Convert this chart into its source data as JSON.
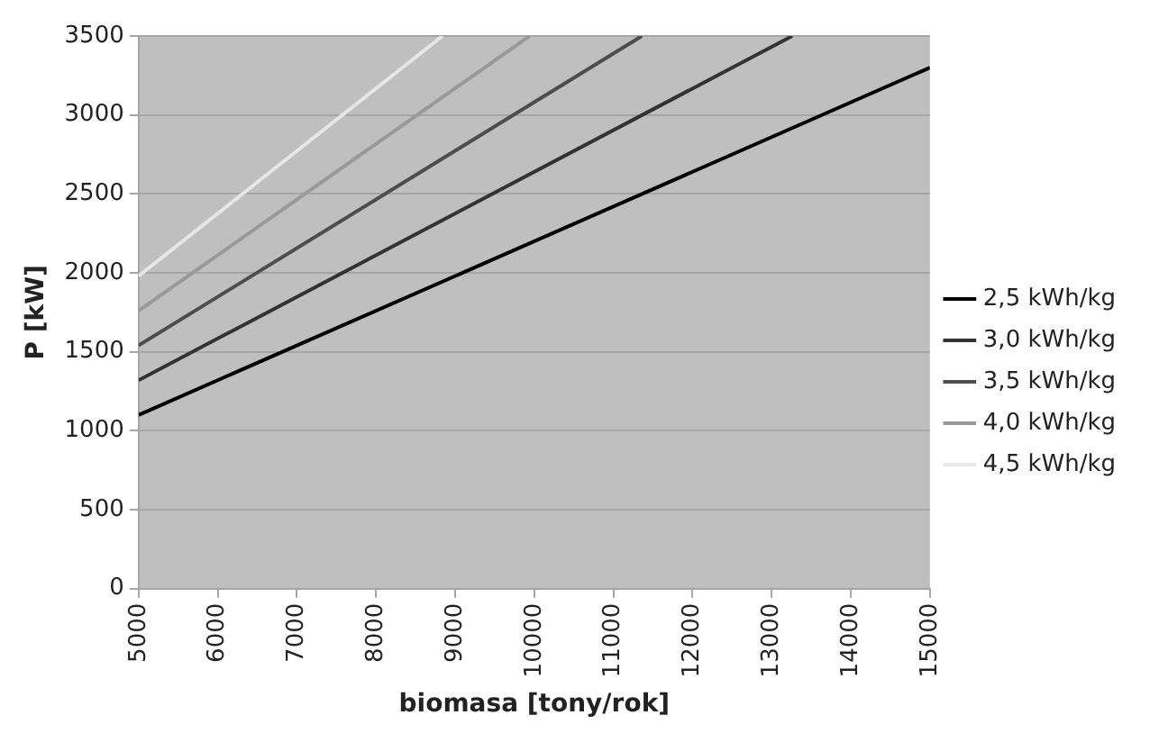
{
  "chart_data": {
    "type": "line",
    "xlabel": "biomasa [tony/rok]",
    "ylabel": "P [kW]",
    "xlim": [
      5000,
      15000
    ],
    "xticks": [
      5000,
      6000,
      7000,
      8000,
      9000,
      10000,
      11000,
      12000,
      13000,
      14000,
      15000
    ],
    "ylim": [
      0,
      3500
    ],
    "yticks": [
      0,
      500,
      1000,
      1500,
      2000,
      2500,
      3000,
      3500
    ],
    "series": [
      {
        "name": "2,5 kWh/kg",
        "color": "#000000",
        "x": [
          5000,
          15000
        ],
        "values": [
          1100,
          3300
        ]
      },
      {
        "name": "3,0 kWh/kg",
        "color": "#333333",
        "x": [
          5000,
          13260
        ],
        "values": [
          1320,
          3500
        ]
      },
      {
        "name": "3,5 kWh/kg",
        "color": "#4d4d4d",
        "x": [
          5000,
          11360
        ],
        "values": [
          1540,
          3500
        ]
      },
      {
        "name": "4,0 kWh/kg",
        "color": "#999999",
        "x": [
          5000,
          9940
        ],
        "values": [
          1760,
          3500
        ]
      },
      {
        "name": "4,5 kWh/kg",
        "color": "#e6e6e6",
        "x": [
          5000,
          8840
        ],
        "values": [
          1980,
          3500
        ]
      }
    ],
    "grid": "y",
    "legend": "right",
    "marker": "none",
    "line_style": "solid"
  }
}
